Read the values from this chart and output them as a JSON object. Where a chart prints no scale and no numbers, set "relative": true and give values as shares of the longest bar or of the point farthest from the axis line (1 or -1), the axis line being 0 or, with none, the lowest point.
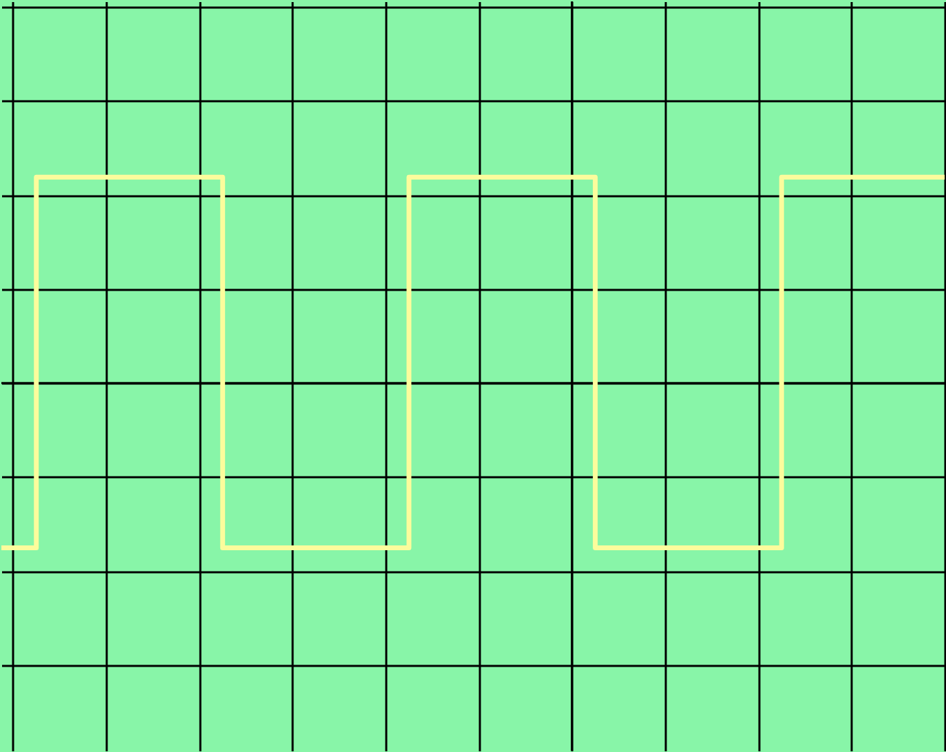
{
  "chart_data": {
    "type": "step",
    "relative": true,
    "grid": true,
    "line_style": "solid",
    "marker": "none",
    "categories": [
      null,
      null,
      null,
      null,
      null,
      null,
      null,
      null,
      null,
      null,
      null,
      null,
      null,
      null,
      null,
      null,
      null,
      null,
      null,
      null,
      null,
      null
    ],
    "series": [
      {
        "color": "#fcfc9c",
        "values": [
          -0.8,
          1,
          1,
          1,
          1,
          -0.8,
          -0.8,
          -0.8,
          -0.8,
          1,
          1,
          1,
          1,
          -0.8,
          -0.8,
          -0.8,
          -0.8,
          1,
          1,
          1,
          1,
          1
        ]
      }
    ]
  }
}
